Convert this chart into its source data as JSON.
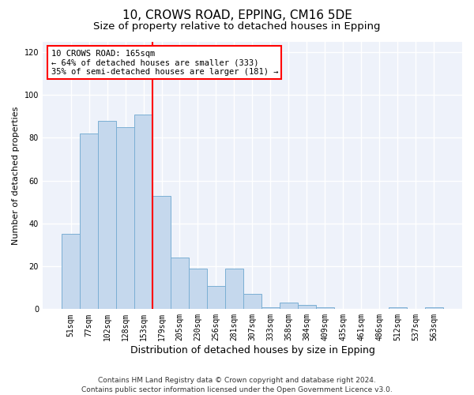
{
  "title1": "10, CROWS ROAD, EPPING, CM16 5DE",
  "title2": "Size of property relative to detached houses in Epping",
  "xlabel": "Distribution of detached houses by size in Epping",
  "ylabel": "Number of detached properties",
  "bar_labels": [
    "51sqm",
    "77sqm",
    "102sqm",
    "128sqm",
    "153sqm",
    "179sqm",
    "205sqm",
    "230sqm",
    "256sqm",
    "281sqm",
    "307sqm",
    "333sqm",
    "358sqm",
    "384sqm",
    "409sqm",
    "435sqm",
    "461sqm",
    "486sqm",
    "512sqm",
    "537sqm",
    "563sqm"
  ],
  "bar_values": [
    35,
    82,
    88,
    85,
    91,
    53,
    24,
    19,
    11,
    19,
    7,
    1,
    3,
    2,
    1,
    0,
    0,
    0,
    1,
    0,
    1
  ],
  "bar_color": "#c5d8ed",
  "bar_edge_color": "#7bafd4",
  "vline_color": "red",
  "annotation_text": "10 CROWS ROAD: 165sqm\n← 64% of detached houses are smaller (333)\n35% of semi-detached houses are larger (181) →",
  "annotation_box_color": "white",
  "annotation_box_edge_color": "red",
  "ylim": [
    0,
    125
  ],
  "yticks": [
    0,
    20,
    40,
    60,
    80,
    100,
    120
  ],
  "footnote": "Contains HM Land Registry data © Crown copyright and database right 2024.\nContains public sector information licensed under the Open Government Licence v3.0.",
  "bg_color": "#eef2fa",
  "grid_color": "#ffffff",
  "title1_fontsize": 11,
  "title2_fontsize": 9.5,
  "xlabel_fontsize": 9,
  "ylabel_fontsize": 8,
  "footnote_fontsize": 6.5,
  "tick_fontsize": 7,
  "annot_fontsize": 7.5
}
